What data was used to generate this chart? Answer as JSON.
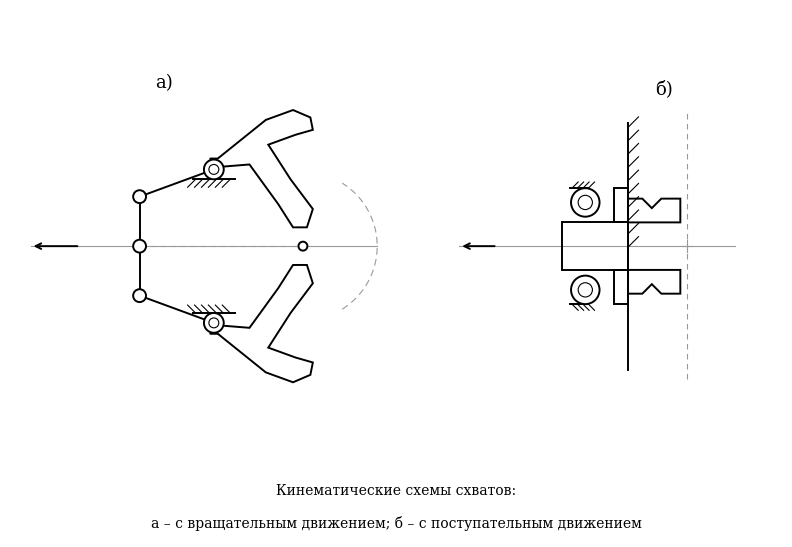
{
  "title_a": "а)",
  "title_b": "б)",
  "caption_line1": "Кинематические схемы схватов:",
  "caption_line2": "а – с вращательным движением; б – с поступательным движением",
  "bg_color": "#ffffff",
  "lc": "#000000",
  "ac": "#999999",
  "lw": 1.4,
  "lw_t": 0.8
}
